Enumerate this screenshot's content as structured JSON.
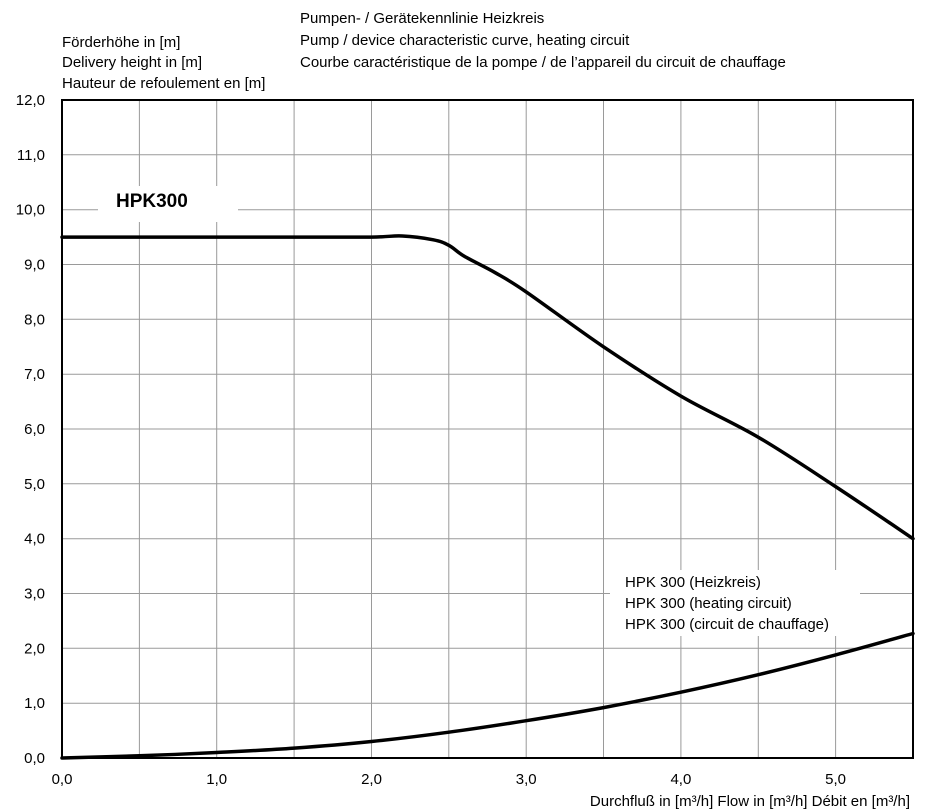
{
  "chart_data": {
    "type": "line",
    "title_lines": [
      "Pumpen- / Gerätekennlinie Heizkreis",
      "Pump / device characteristic curve, heating circuit",
      "Courbe caractéristique de la pompe / de l’appareil du circuit de chauffage"
    ],
    "ylabel_lines": [
      "Förderhöhe in [m]",
      "Delivery height in [m]",
      "Hauteur de refoulement en [m]"
    ],
    "xlabel": "Durchfluß in [m³/h] Flow in [m³/h] Débit en [m³/h]",
    "xlim": [
      0,
      5.5
    ],
    "ylim": [
      0,
      12
    ],
    "x_ticks": [
      {
        "value": 0,
        "label": "0,0"
      },
      {
        "value": 1,
        "label": "1,0"
      },
      {
        "value": 2,
        "label": "2,0"
      },
      {
        "value": 3,
        "label": "3,0"
      },
      {
        "value": 4,
        "label": "4,0"
      },
      {
        "value": 5,
        "label": "5,0"
      }
    ],
    "y_ticks": [
      {
        "value": 0,
        "label": "0,0"
      },
      {
        "value": 1,
        "label": "1,0"
      },
      {
        "value": 2,
        "label": "2,0"
      },
      {
        "value": 3,
        "label": "3,0"
      },
      {
        "value": 4,
        "label": "4,0"
      },
      {
        "value": 5,
        "label": "5,0"
      },
      {
        "value": 6,
        "label": "6,0"
      },
      {
        "value": 7,
        "label": "7,0"
      },
      {
        "value": 8,
        "label": "8,0"
      },
      {
        "value": 9,
        "label": "9,0"
      },
      {
        "value": 10,
        "label": "10,0"
      },
      {
        "value": 11,
        "label": "11,0"
      },
      {
        "value": 12,
        "label": "12,0"
      }
    ],
    "x_grid_step": 0.5,
    "grid": true,
    "series": [
      {
        "name": "HPK300",
        "points": [
          [
            0,
            9.5
          ],
          [
            0.5,
            9.5
          ],
          [
            1.0,
            9.5
          ],
          [
            1.5,
            9.5
          ],
          [
            2.0,
            9.5
          ],
          [
            2.2,
            9.52
          ],
          [
            2.4,
            9.45
          ],
          [
            2.5,
            9.35
          ],
          [
            2.6,
            9.15
          ],
          [
            2.8,
            8.85
          ],
          [
            3.0,
            8.5
          ],
          [
            3.5,
            7.5
          ],
          [
            4.0,
            6.6
          ],
          [
            4.5,
            5.85
          ],
          [
            5.0,
            4.95
          ],
          [
            5.5,
            4.0
          ]
        ]
      },
      {
        "name_lines": [
          "HPK 300 (Heizkreis)",
          "HPK 300 (heating circuit)",
          "HPK 300 (circuit de chauffage)"
        ],
        "points": [
          [
            0,
            0.0
          ],
          [
            0.5,
            0.04
          ],
          [
            1.0,
            0.1
          ],
          [
            1.5,
            0.18
          ],
          [
            2.0,
            0.3
          ],
          [
            2.5,
            0.47
          ],
          [
            3.0,
            0.68
          ],
          [
            3.5,
            0.92
          ],
          [
            4.0,
            1.2
          ],
          [
            4.5,
            1.52
          ],
          [
            5.0,
            1.88
          ],
          [
            5.5,
            2.27
          ]
        ]
      }
    ]
  }
}
